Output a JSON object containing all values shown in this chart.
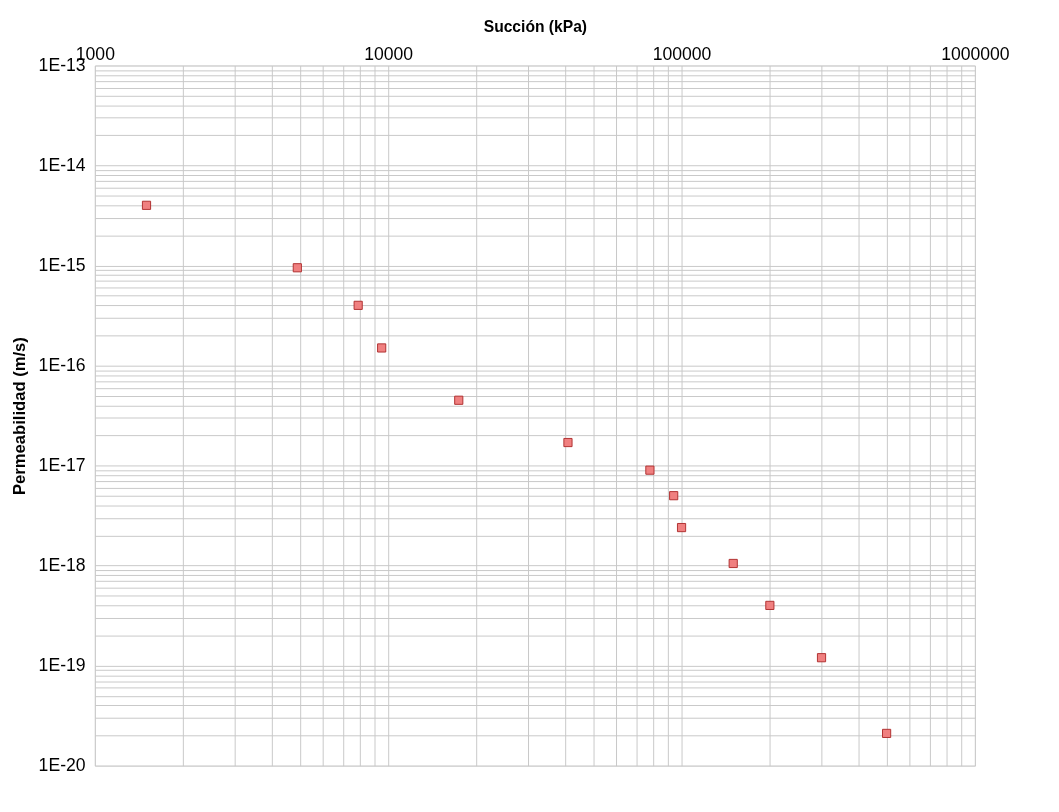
{
  "chart_data": {
    "type": "scatter",
    "xlabel": "Succión (kPa)",
    "ylabel": "Permeabilidad (m/s)",
    "x": [
      1500,
      4900,
      7900,
      9500,
      17400,
      41000,
      78000,
      94000,
      100000,
      150000,
      200000,
      300000,
      500000
    ],
    "series": [
      {
        "color": "#f08080",
        "values": [
          4e-15,
          9.5e-16,
          4e-16,
          1.5e-16,
          4.5e-17,
          1.7e-17,
          9e-18,
          5e-18,
          2.4e-18,
          1.05e-18,
          4e-19,
          1.2e-19,
          2.1e-20
        ]
      }
    ],
    "marker": "square",
    "log": "xy",
    "grid": true,
    "xlim": [
      1000,
      1000000
    ],
    "xticks": [
      1000,
      {
        "value": 2000,
        "label": null
      },
      {
        "value": 3000,
        "label": null
      },
      {
        "value": 4000,
        "label": null
      },
      {
        "value": 5000,
        "label": null
      },
      {
        "value": 6000,
        "label": null
      },
      {
        "value": 7000,
        "label": null
      },
      {
        "value": 8000,
        "label": null
      },
      {
        "value": 9000,
        "label": null
      },
      10000,
      {
        "value": 20000,
        "label": null
      },
      {
        "value": 30000,
        "label": null
      },
      {
        "value": 40000,
        "label": null
      },
      {
        "value": 50000,
        "label": null
      },
      {
        "value": 60000,
        "label": null
      },
      {
        "value": 70000,
        "label": null
      },
      {
        "value": 80000,
        "label": null
      },
      {
        "value": 90000,
        "label": null
      },
      100000,
      {
        "value": 200000,
        "label": null
      },
      {
        "value": 300000,
        "label": null
      },
      {
        "value": 400000,
        "label": null
      },
      {
        "value": 500000,
        "label": null
      },
      {
        "value": 600000,
        "label": null
      },
      {
        "value": 700000,
        "label": null
      },
      {
        "value": 800000,
        "label": null
      },
      {
        "value": 900000,
        "label": null
      },
      1000000
    ],
    "ylim": [
      1e-20,
      1e-13
    ],
    "yticks": [
      {
        "value": 1e-20,
        "label": "1E-20"
      },
      {
        "value": 2e-20,
        "label": null
      },
      {
        "value": 3e-20,
        "label": null
      },
      {
        "value": 4e-20,
        "label": null
      },
      {
        "value": 5e-20,
        "label": null
      },
      {
        "value": 6e-20,
        "label": null
      },
      {
        "value": 7e-20,
        "label": null
      },
      {
        "value": 8e-20,
        "label": null
      },
      {
        "value": 9e-20,
        "label": null
      },
      {
        "value": 1e-19,
        "label": "1E-19"
      },
      {
        "value": 2e-19,
        "label": null
      },
      {
        "value": 3e-19,
        "label": null
      },
      {
        "value": 4e-19,
        "label": null
      },
      {
        "value": 5e-19,
        "label": null
      },
      {
        "value": 6e-19,
        "label": null
      },
      {
        "value": 7e-19,
        "label": null
      },
      {
        "value": 8e-19,
        "label": null
      },
      {
        "value": 9e-19,
        "label": null
      },
      {
        "value": 1e-18,
        "label": "1E-18"
      },
      {
        "value": 2e-18,
        "label": null
      },
      {
        "value": 3e-18,
        "label": null
      },
      {
        "value": 4e-18,
        "label": null
      },
      {
        "value": 5e-18,
        "label": null
      },
      {
        "value": 6e-18,
        "label": null
      },
      {
        "value": 7e-18,
        "label": null
      },
      {
        "value": 8e-18,
        "label": null
      },
      {
        "value": 9e-18,
        "label": null
      },
      {
        "value": 1e-17,
        "label": "1E-17"
      },
      {
        "value": 2e-17,
        "label": null
      },
      {
        "value": 3e-17,
        "label": null
      },
      {
        "value": 4e-17,
        "label": null
      },
      {
        "value": 5e-17,
        "label": null
      },
      {
        "value": 6e-17,
        "label": null
      },
      {
        "value": 7e-17,
        "label": null
      },
      {
        "value": 8e-17,
        "label": null
      },
      {
        "value": 9e-17,
        "label": null
      },
      {
        "value": 1e-16,
        "label": "1E-16"
      },
      {
        "value": 2e-16,
        "label": null
      },
      {
        "value": 3e-16,
        "label": null
      },
      {
        "value": 4e-16,
        "label": null
      },
      {
        "value": 5e-16,
        "label": null
      },
      {
        "value": 6e-16,
        "label": null
      },
      {
        "value": 7e-16,
        "label": null
      },
      {
        "value": 8e-16,
        "label": null
      },
      {
        "value": 9e-16,
        "label": null
      },
      {
        "value": 1e-15,
        "label": "1E-15"
      },
      {
        "value": 2e-15,
        "label": null
      },
      {
        "value": 3e-15,
        "label": null
      },
      {
        "value": 4e-15,
        "label": null
      },
      {
        "value": 5e-15,
        "label": null
      },
      {
        "value": 6e-15,
        "label": null
      },
      {
        "value": 7e-15,
        "label": null
      },
      {
        "value": 8e-15,
        "label": null
      },
      {
        "value": 9e-15,
        "label": null
      },
      {
        "value": 1e-14,
        "label": "1E-14"
      },
      {
        "value": 2e-14,
        "label": null
      },
      {
        "value": 3e-14,
        "label": null
      },
      {
        "value": 4e-14,
        "label": null
      },
      {
        "value": 5e-14,
        "label": null
      },
      {
        "value": 6e-14,
        "label": null
      },
      {
        "value": 7e-14,
        "label": null
      },
      {
        "value": 8e-14,
        "label": null
      },
      {
        "value": 9e-14,
        "label": null
      },
      {
        "value": 1e-13,
        "label": "1E-13"
      }
    ]
  }
}
